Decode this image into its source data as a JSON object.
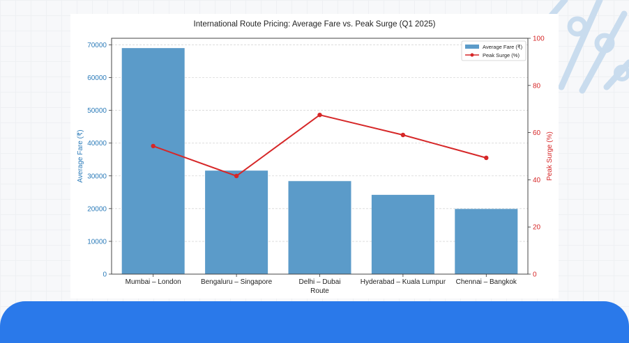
{
  "chart_data": {
    "type": "bar",
    "title": "International Route Pricing: Average Fare vs. Peak Surge (Q1 2025)",
    "xlabel": "Route",
    "ylabel": "Average Fare (₹)",
    "y2label": "Peak Surge (%)",
    "categories": [
      "Mumbai – London",
      "Bengaluru – Singapore",
      "Delhi – Dubai",
      "Hyderabad – Kuala Lumpur",
      "Chennai – Bangkok"
    ],
    "series": [
      {
        "name": "Average Fare (₹)",
        "type": "bar",
        "axis": "left",
        "color": "#5b9bc9",
        "values": [
          69000,
          31600,
          28400,
          24200,
          19900
        ]
      },
      {
        "name": "Peak Surge (%)",
        "type": "line",
        "axis": "right",
        "color": "#d62728",
        "values": [
          54.3,
          41.6,
          67.5,
          59.0,
          49.3
        ]
      }
    ],
    "ylim": [
      0,
      72000
    ],
    "y2lim": [
      0,
      100
    ],
    "yticks": [
      0,
      10000,
      20000,
      30000,
      40000,
      50000,
      60000,
      70000
    ],
    "y2ticks": [
      0,
      20,
      40,
      60,
      80,
      100
    ],
    "grid": true,
    "legend_position": "upper right",
    "left_axis_color": "#2b7bb9",
    "right_axis_color": "#d62728"
  },
  "legend": {
    "bar_label": "Average Fare (₹)",
    "line_label": "Peak Surge (%)"
  }
}
